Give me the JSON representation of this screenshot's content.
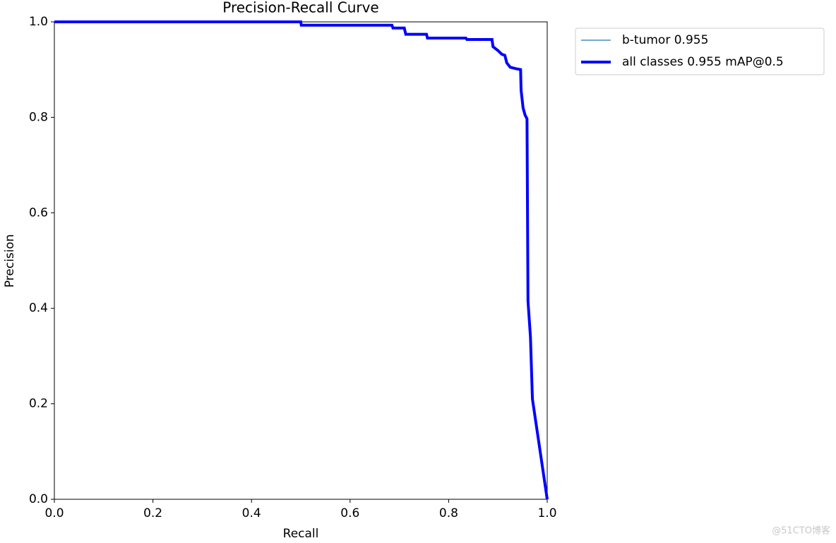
{
  "chart_data": {
    "type": "line",
    "title": "Precision-Recall Curve",
    "x_label": "Recall",
    "y_label": "Precision",
    "x": [
      0,
      0.5,
      0.501,
      0.685,
      0.687,
      0.71,
      0.713,
      0.755,
      0.757,
      0.835,
      0.837,
      0.888,
      0.89,
      0.9,
      0.908,
      0.914,
      0.918,
      0.925,
      0.936,
      0.946,
      0.947,
      0.951,
      0.955,
      0.959,
      0.961,
      0.966,
      0.97,
      1.0
    ],
    "series": [
      {
        "name": "b-tumor 0.955",
        "color": "#1f77b4",
        "values": [
          1,
          1,
          0.993,
          0.993,
          0.987,
          0.987,
          0.974,
          0.974,
          0.966,
          0.966,
          0.963,
          0.963,
          0.948,
          0.94,
          0.932,
          0.93,
          0.914,
          0.905,
          0.902,
          0.9,
          0.857,
          0.82,
          0.805,
          0.797,
          0.415,
          0.34,
          0.21,
          0
        ]
      },
      {
        "name": "all classes 0.955 mAP@0.5",
        "color": "#0000ff",
        "values": [
          1,
          1,
          0.993,
          0.993,
          0.987,
          0.987,
          0.974,
          0.974,
          0.966,
          0.966,
          0.963,
          0.963,
          0.948,
          0.94,
          0.932,
          0.93,
          0.914,
          0.905,
          0.902,
          0.9,
          0.857,
          0.82,
          0.805,
          0.797,
          0.415,
          0.34,
          0.21,
          0
        ]
      }
    ],
    "xlim": [
      0,
      1
    ],
    "ylim": [
      0,
      1
    ],
    "xticks": [
      {
        "value": 0,
        "label": "0.0"
      },
      0.2,
      0.4,
      0.6,
      0.8,
      {
        "value": 1,
        "label": "1.0"
      }
    ],
    "yticks": [
      {
        "value": 0,
        "label": "0.0"
      },
      0.2,
      0.4,
      0.6,
      0.8,
      {
        "value": 1,
        "label": "1.0"
      }
    ],
    "grid": false,
    "legend": "outside upper right"
  },
  "watermark": "@51CTO博客"
}
